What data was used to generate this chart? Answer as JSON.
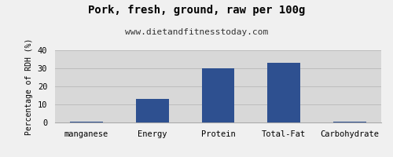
{
  "title": "Pork, fresh, ground, raw per 100g",
  "subtitle": "www.dietandfitnesstoday.com",
  "ylabel": "Percentage of RDH (%)",
  "categories": [
    "manganese",
    "Energy",
    "Protein",
    "Total-Fat",
    "Carbohydrate"
  ],
  "values": [
    0.3,
    13.0,
    30.0,
    33.0,
    0.3
  ],
  "bar_color": "#2e5090",
  "ylim": [
    0,
    40
  ],
  "yticks": [
    0,
    10,
    20,
    30,
    40
  ],
  "figure_bg_color": "#f0f0f0",
  "plot_bg_color": "#d8d8d8",
  "title_fontsize": 10,
  "subtitle_fontsize": 8,
  "ylabel_fontsize": 7,
  "tick_fontsize": 7.5,
  "bar_width": 0.5
}
